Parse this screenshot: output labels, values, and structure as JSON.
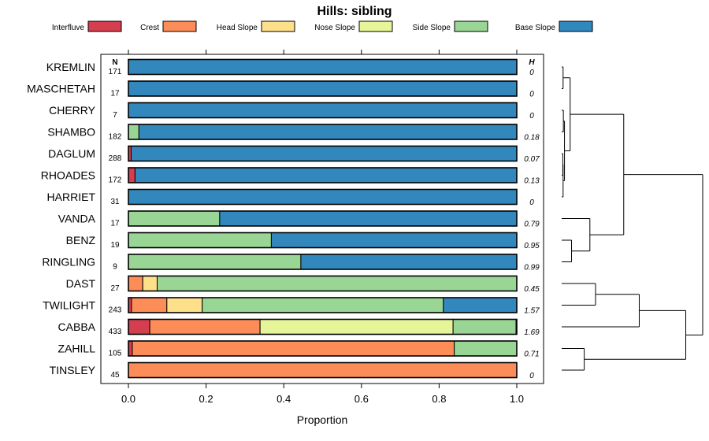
{
  "chart_data": {
    "type": "bar",
    "subtype": "stacked-horizontal-proportion-with-dendrogram",
    "title": "Hills: sibling",
    "xlabel": "Proportion",
    "ylabel": "",
    "xlim": [
      0,
      1
    ],
    "xticks": [
      "0.0",
      "0.2",
      "0.4",
      "0.6",
      "0.8",
      "1.0"
    ],
    "tick_values": [
      0,
      0.2,
      0.4,
      0.6,
      0.8,
      1.0
    ],
    "n_header": "N",
    "h_header": "H",
    "legend_position": "top",
    "classes": [
      {
        "name": "Interfluve",
        "color": "#d53e4f"
      },
      {
        "name": "Crest",
        "color": "#fc8d59"
      },
      {
        "name": "Head Slope",
        "color": "#fee08b"
      },
      {
        "name": "Nose Slope",
        "color": "#e6f598"
      },
      {
        "name": "Side Slope",
        "color": "#99d594"
      },
      {
        "name": "Base Slope",
        "color": "#3288bd"
      }
    ],
    "rows": [
      {
        "name": "KREMLIN",
        "n": "171",
        "h": "0",
        "values": [
          0,
          0,
          0,
          0,
          0,
          1.0
        ]
      },
      {
        "name": "MASCHETAH",
        "n": "17",
        "h": "0",
        "values": [
          0,
          0,
          0,
          0,
          0,
          1.0
        ]
      },
      {
        "name": "CHERRY",
        "n": "7",
        "h": "0",
        "values": [
          0,
          0,
          0,
          0,
          0,
          1.0
        ]
      },
      {
        "name": "SHAMBO",
        "n": "182",
        "h": "0.18",
        "values": [
          0,
          0,
          0,
          0,
          0.027,
          0.973
        ]
      },
      {
        "name": "DAGLUM",
        "n": "288",
        "h": "0.07",
        "values": [
          0.007,
          0,
          0,
          0,
          0,
          0.993
        ]
      },
      {
        "name": "RHOADES",
        "n": "172",
        "h": "0.13",
        "values": [
          0.017,
          0,
          0,
          0,
          0,
          0.983
        ]
      },
      {
        "name": "HARRIET",
        "n": "31",
        "h": "0",
        "values": [
          0,
          0,
          0,
          0,
          0,
          1.0
        ]
      },
      {
        "name": "VANDA",
        "n": "17",
        "h": "0.79",
        "values": [
          0,
          0,
          0,
          0,
          0.235,
          0.765
        ]
      },
      {
        "name": "BENZ",
        "n": "19",
        "h": "0.95",
        "values": [
          0,
          0,
          0,
          0,
          0.368,
          0.632
        ]
      },
      {
        "name": "RINGLING",
        "n": "9",
        "h": "0.99",
        "values": [
          0,
          0,
          0,
          0,
          0.444,
          0.556
        ]
      },
      {
        "name": "DAST",
        "n": "27",
        "h": "0.45",
        "values": [
          0,
          0.037,
          0.037,
          0,
          0.926,
          0
        ]
      },
      {
        "name": "TWILIGHT",
        "n": "243",
        "h": "1.57",
        "values": [
          0.008,
          0.091,
          0.091,
          0,
          0.621,
          0.189
        ]
      },
      {
        "name": "CABBA",
        "n": "433",
        "h": "1.69",
        "values": [
          0.055,
          0.284,
          0,
          0.497,
          0.162,
          0.002
        ]
      },
      {
        "name": "ZAHILL",
        "n": "105",
        "h": "0.71",
        "values": [
          0.01,
          0.829,
          0,
          0,
          0.161,
          0
        ]
      },
      {
        "name": "TINSLEY",
        "n": "45",
        "h": "0",
        "values": [
          0,
          1.0,
          0,
          0,
          0,
          0
        ]
      }
    ],
    "dendrogram": {
      "merges": [
        {
          "a": "KREMLIN",
          "b": "MASCHETAH",
          "height": 0.01
        },
        {
          "a": "CHERRY",
          "b": "SHAMBO",
          "height": 0.012
        },
        {
          "a": "DAGLUM",
          "b": "RHOADES",
          "height": 0.008
        },
        {
          "a": "m3",
          "b": "HARRIET",
          "height": 0.01
        },
        {
          "a": "m2",
          "b": "m4",
          "height": 0.02
        },
        {
          "a": "m1",
          "b": "m5",
          "height": 0.06
        },
        {
          "a": "BENZ",
          "b": "RINGLING",
          "height": 0.07
        },
        {
          "a": "VANDA",
          "b": "m7",
          "height": 0.2
        },
        {
          "a": "m6",
          "b": "m8",
          "height": 0.44
        },
        {
          "a": "DAST",
          "b": "TWILIGHT",
          "height": 0.24
        },
        {
          "a": "m10",
          "b": "CABBA",
          "height": 0.55
        },
        {
          "a": "ZAHILL",
          "b": "TINSLEY",
          "height": 0.16
        },
        {
          "a": "m11",
          "b": "m12",
          "height": 0.88
        },
        {
          "a": "m9",
          "b": "m13",
          "height": 1.0
        }
      ]
    }
  }
}
